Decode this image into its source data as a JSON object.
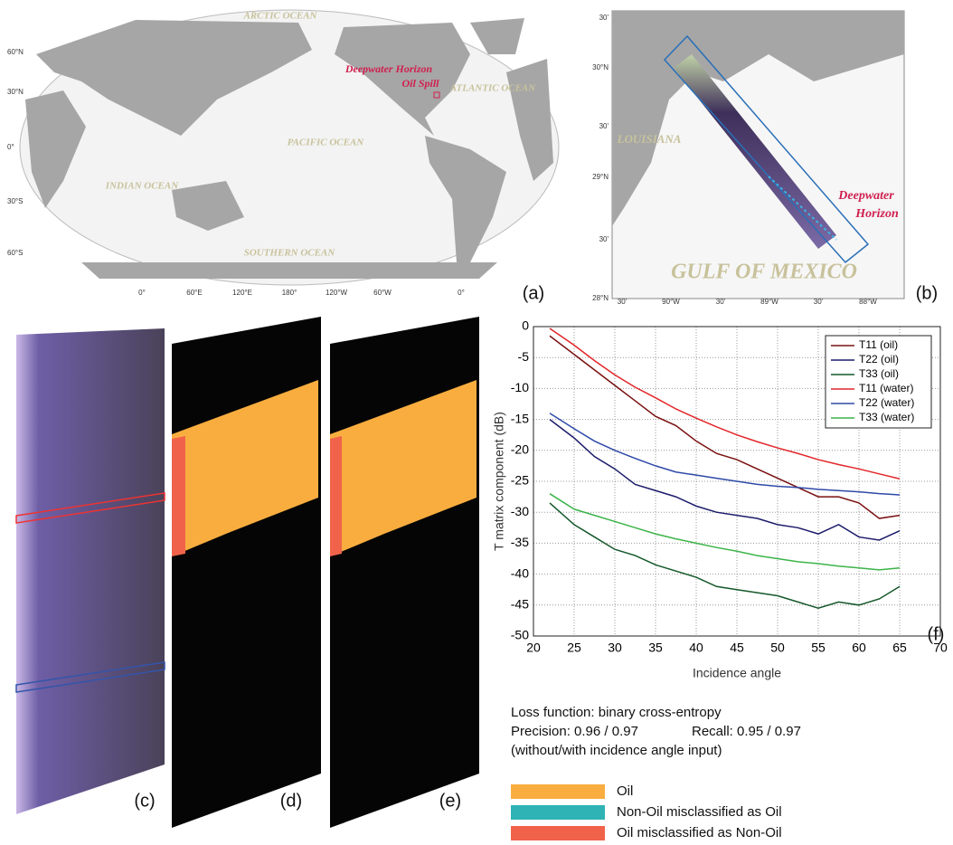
{
  "panel_labels": [
    "(a)",
    "(b)",
    "(c)",
    "(d)",
    "(e)",
    "(f)"
  ],
  "world_map": {
    "oceans": [
      "ARCTIC OCEAN",
      "ATLANTIC OCEAN",
      "PACIFIC OCEAN",
      "INDIAN OCEAN",
      "SOUTHERN OCEAN"
    ],
    "site": [
      "Deepwater Horizon",
      "Oil Spill"
    ],
    "lat_labels": [
      "60°N",
      "30°N",
      "0°",
      "30°S",
      "60°S"
    ],
    "lon_labels": [
      "0°",
      "60°E",
      "120°E",
      "180°",
      "120°W",
      "60°W",
      "0°"
    ]
  },
  "gulf_map": {
    "region": "LOUISIANA",
    "sea": "GULF OF MEXICO",
    "site": [
      "Deepwater",
      "Horizon"
    ],
    "lat_labels": [
      "30'",
      "30°N",
      "30'",
      "29°N",
      "30'",
      "28°N"
    ],
    "lon_labels": [
      "30'",
      "90°W",
      "30'",
      "89°W",
      "30'",
      "88°W"
    ]
  },
  "chart_data": {
    "type": "line",
    "x_label": "Incidence angle",
    "y_label": "T matrix component (dB)",
    "x": [
      22,
      25,
      27.5,
      30,
      32.5,
      35,
      37.5,
      40,
      42.5,
      45,
      47.5,
      50,
      52.5,
      55,
      57.5,
      60,
      62.5,
      65
    ],
    "xlim": [
      20,
      70
    ],
    "xticks": [
      20,
      25,
      30,
      35,
      40,
      45,
      50,
      55,
      60,
      65,
      70
    ],
    "ylim": [
      -50,
      0
    ],
    "yticks": [
      0,
      -5,
      -10,
      -15,
      -20,
      -25,
      -30,
      -35,
      -40,
      -45,
      -50
    ],
    "grid": true,
    "legend": "upper right",
    "series": [
      {
        "name": "T11 (oil)",
        "color": "#7a1010",
        "values": [
          -1.5,
          -4.5,
          -7,
          -9.5,
          -12,
          -14.5,
          -16,
          -18.5,
          -20.5,
          -21.5,
          -23,
          -24.5,
          -26,
          -27.5,
          -27.5,
          -28.5,
          -31,
          -30.5
        ]
      },
      {
        "name": "T22 (oil)",
        "color": "#1c1c6b",
        "values": [
          -15,
          -18,
          -21,
          -23,
          -25.5,
          -26.5,
          -27.5,
          -29,
          -30,
          -30.5,
          -31,
          -32,
          -32.5,
          -33.5,
          -32,
          -34,
          -34.5,
          -33
        ]
      },
      {
        "name": "T33 (oil)",
        "color": "#14582a",
        "values": [
          -28.5,
          -32,
          -34,
          -36,
          -37,
          -38.5,
          -39.5,
          -40.5,
          -42,
          -42.5,
          -43,
          -43.5,
          -44.5,
          -45.5,
          -44.5,
          -45,
          -44,
          -42
        ]
      },
      {
        "name": "T11 (water)",
        "color": "#e3262a",
        "values": [
          -0.3,
          -3,
          -5.5,
          -7.8,
          -9.8,
          -11.5,
          -13.3,
          -14.8,
          -16.2,
          -17.5,
          -18.6,
          -19.6,
          -20.5,
          -21.5,
          -22.3,
          -23,
          -23.8,
          -24.6
        ]
      },
      {
        "name": "T22 (water)",
        "color": "#2f4aa8",
        "values": [
          -14,
          -16.5,
          -18.5,
          -20,
          -21.3,
          -22.5,
          -23.5,
          -24,
          -24.5,
          -25,
          -25.5,
          -25.8,
          -26,
          -26.3,
          -26.5,
          -26.7,
          -27,
          -27.2
        ]
      },
      {
        "name": "T33 (water)",
        "color": "#3cb44a",
        "values": [
          -27,
          -29.5,
          -30.5,
          -31.5,
          -32.5,
          -33.5,
          -34.3,
          -35,
          -35.7,
          -36.3,
          -37,
          -37.5,
          -38,
          -38.3,
          -38.7,
          -39,
          -39.3,
          -39
        ]
      }
    ]
  },
  "notes": [
    "Loss function: binary cross-entropy",
    "Precision: 0.96 / 0.97",
    "Recall: 0.95 / 0.97",
    "(without/with incidence angle input)"
  ],
  "legend": [
    {
      "label": "Oil",
      "color": "#f9ad3f"
    },
    {
      "label": "Non-Oil misclassified as Oil",
      "color": "#2fb3b5"
    },
    {
      "label": "Oil misclassified as Non-Oil",
      "color": "#f0634a"
    }
  ]
}
